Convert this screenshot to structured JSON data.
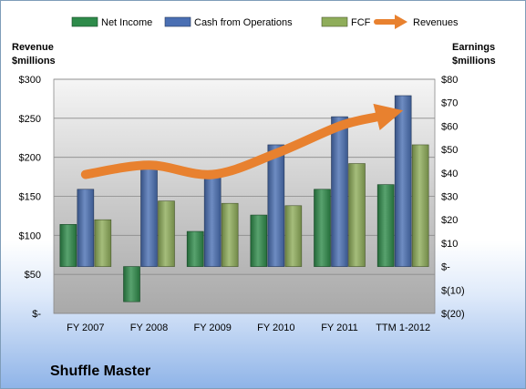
{
  "chart_data": {
    "type": "bar",
    "title": "Shuffle Master",
    "categories": [
      "FY 2007",
      "FY 2008",
      "FY 2009",
      "FY 2010",
      "FY 2011",
      "TTM 1-2012"
    ],
    "series": [
      {
        "name": "Net Income",
        "axis": "right",
        "kind": "bar",
        "color": "#2e8b4a",
        "values": [
          18,
          -15,
          15,
          22,
          33,
          35
        ]
      },
      {
        "name": "Cash from Operations",
        "axis": "right",
        "kind": "bar",
        "color": "#4a6fb3",
        "values": [
          33,
          42,
          40,
          52,
          64,
          73
        ]
      },
      {
        "name": "FCF",
        "axis": "right",
        "kind": "bar",
        "color": "#8fad5a",
        "values": [
          20,
          28,
          27,
          26,
          44,
          52
        ]
      },
      {
        "name": "Revenues",
        "axis": "left",
        "kind": "arrow-line",
        "color": "#e8812f",
        "values": [
          178,
          190,
          178,
          205,
          240,
          260
        ]
      }
    ],
    "left_axis": {
      "title_line1": "Revenue",
      "title_line2": "$millions",
      "ylim": [
        0,
        300
      ],
      "ticks": [
        {
          "value": 300,
          "label": "$300"
        },
        {
          "value": 250,
          "label": "$250"
        },
        {
          "value": 200,
          "label": "$200"
        },
        {
          "value": 150,
          "label": "$150"
        },
        {
          "value": 100,
          "label": "$100"
        },
        {
          "value": 50,
          "label": "$50"
        },
        {
          "value": 0,
          "label": "$-"
        }
      ]
    },
    "right_axis": {
      "title_line1": "Earnings",
      "title_line2": "$millions",
      "ylim": [
        -20,
        80
      ],
      "ticks": [
        {
          "value": 80,
          "label": "$80"
        },
        {
          "value": 70,
          "label": "$70"
        },
        {
          "value": 60,
          "label": "$60"
        },
        {
          "value": 50,
          "label": "$50"
        },
        {
          "value": 40,
          "label": "$40"
        },
        {
          "value": 30,
          "label": "$30"
        },
        {
          "value": 20,
          "label": "$20"
        },
        {
          "value": 10,
          "label": "$10"
        },
        {
          "value": 0,
          "label": "$-"
        },
        {
          "value": -10,
          "label": "$(10)"
        },
        {
          "value": -20,
          "label": "$(20)"
        }
      ]
    },
    "grid": true,
    "legend_position": "top"
  }
}
